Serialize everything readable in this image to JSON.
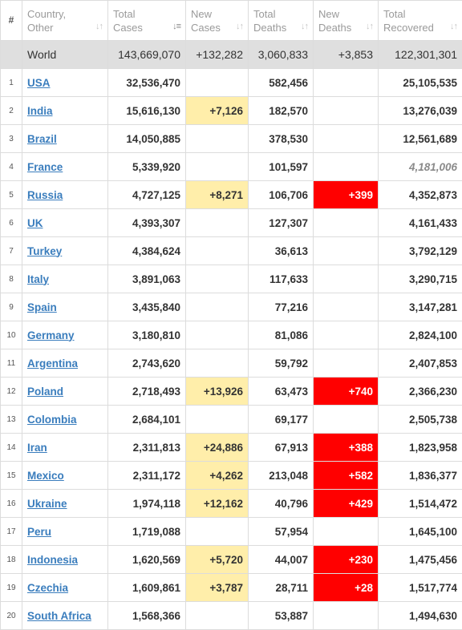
{
  "header": {
    "index": "#",
    "country": [
      "Country,",
      "Other"
    ],
    "total_cases": [
      "Total",
      "Cases"
    ],
    "new_cases": [
      "New",
      "Cases"
    ],
    "total_deaths": [
      "Total",
      "Deaths"
    ],
    "new_deaths": [
      "New",
      "Deaths"
    ],
    "total_recovered": [
      "Total",
      "Recovered"
    ],
    "sort_icon": "sort-arrows-icon"
  },
  "colors": {
    "link": "#3a7dbd",
    "new_cases_highlight": "#ffeeaa",
    "new_deaths_highlight": "#ff0000",
    "world_row_bg": "#dfdfdf"
  },
  "world": {
    "country": "World",
    "total_cases": "143,669,070",
    "new_cases": "+132,282",
    "total_deaths": "3,060,833",
    "new_deaths": "+3,853",
    "total_recovered": "122,301,301"
  },
  "rows": [
    {
      "idx": "1",
      "country": "USA",
      "total_cases": "32,536,470",
      "new_cases": "",
      "total_deaths": "582,456",
      "new_deaths": "",
      "total_recovered": "25,105,535"
    },
    {
      "idx": "2",
      "country": "India",
      "total_cases": "15,616,130",
      "new_cases": "+7,126",
      "total_deaths": "182,570",
      "new_deaths": "",
      "total_recovered": "13,276,039"
    },
    {
      "idx": "3",
      "country": "Brazil",
      "total_cases": "14,050,885",
      "new_cases": "",
      "total_deaths": "378,530",
      "new_deaths": "",
      "total_recovered": "12,561,689"
    },
    {
      "idx": "4",
      "country": "France",
      "total_cases": "5,339,920",
      "new_cases": "",
      "total_deaths": "101,597",
      "new_deaths": "",
      "total_recovered": "4,181,006",
      "recovered_estimated": true
    },
    {
      "idx": "5",
      "country": "Russia",
      "total_cases": "4,727,125",
      "new_cases": "+8,271",
      "total_deaths": "106,706",
      "new_deaths": "+399",
      "total_recovered": "4,352,873"
    },
    {
      "idx": "6",
      "country": "UK",
      "total_cases": "4,393,307",
      "new_cases": "",
      "total_deaths": "127,307",
      "new_deaths": "",
      "total_recovered": "4,161,433"
    },
    {
      "idx": "7",
      "country": "Turkey",
      "total_cases": "4,384,624",
      "new_cases": "",
      "total_deaths": "36,613",
      "new_deaths": "",
      "total_recovered": "3,792,129"
    },
    {
      "idx": "8",
      "country": "Italy",
      "total_cases": "3,891,063",
      "new_cases": "",
      "total_deaths": "117,633",
      "new_deaths": "",
      "total_recovered": "3,290,715"
    },
    {
      "idx": "9",
      "country": "Spain",
      "total_cases": "3,435,840",
      "new_cases": "",
      "total_deaths": "77,216",
      "new_deaths": "",
      "total_recovered": "3,147,281"
    },
    {
      "idx": "10",
      "country": "Germany",
      "total_cases": "3,180,810",
      "new_cases": "",
      "total_deaths": "81,086",
      "new_deaths": "",
      "total_recovered": "2,824,100"
    },
    {
      "idx": "11",
      "country": "Argentina",
      "total_cases": "2,743,620",
      "new_cases": "",
      "total_deaths": "59,792",
      "new_deaths": "",
      "total_recovered": "2,407,853"
    },
    {
      "idx": "12",
      "country": "Poland",
      "total_cases": "2,718,493",
      "new_cases": "+13,926",
      "total_deaths": "63,473",
      "new_deaths": "+740",
      "total_recovered": "2,366,230"
    },
    {
      "idx": "13",
      "country": "Colombia",
      "total_cases": "2,684,101",
      "new_cases": "",
      "total_deaths": "69,177",
      "new_deaths": "",
      "total_recovered": "2,505,738"
    },
    {
      "idx": "14",
      "country": "Iran",
      "total_cases": "2,311,813",
      "new_cases": "+24,886",
      "total_deaths": "67,913",
      "new_deaths": "+388",
      "total_recovered": "1,823,958"
    },
    {
      "idx": "15",
      "country": "Mexico",
      "total_cases": "2,311,172",
      "new_cases": "+4,262",
      "total_deaths": "213,048",
      "new_deaths": "+582",
      "total_recovered": "1,836,377"
    },
    {
      "idx": "16",
      "country": "Ukraine",
      "total_cases": "1,974,118",
      "new_cases": "+12,162",
      "total_deaths": "40,796",
      "new_deaths": "+429",
      "total_recovered": "1,514,472"
    },
    {
      "idx": "17",
      "country": "Peru",
      "total_cases": "1,719,088",
      "new_cases": "",
      "total_deaths": "57,954",
      "new_deaths": "",
      "total_recovered": "1,645,100"
    },
    {
      "idx": "18",
      "country": "Indonesia",
      "total_cases": "1,620,569",
      "new_cases": "+5,720",
      "total_deaths": "44,007",
      "new_deaths": "+230",
      "total_recovered": "1,475,456"
    },
    {
      "idx": "19",
      "country": "Czechia",
      "total_cases": "1,609,861",
      "new_cases": "+3,787",
      "total_deaths": "28,711",
      "new_deaths": "+28",
      "total_recovered": "1,517,774"
    },
    {
      "idx": "20",
      "country": "South Africa",
      "total_cases": "1,568,366",
      "new_cases": "",
      "total_deaths": "53,887",
      "new_deaths": "",
      "total_recovered": "1,494,630"
    }
  ]
}
